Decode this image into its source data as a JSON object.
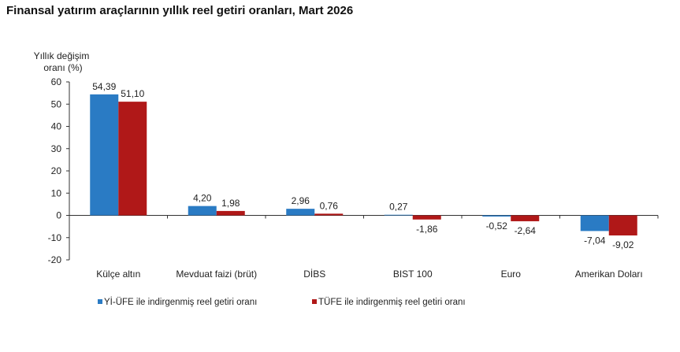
{
  "chart_data": {
    "type": "bar",
    "title": "Finansal yatırım araçlarının yıllık reel getiri oranları, Mart 2026",
    "ylabel": [
      "Yıllık değişim",
      "oranı (%)"
    ],
    "xlabel": "",
    "ylim": [
      -20,
      60
    ],
    "yticks": [
      60,
      50,
      40,
      30,
      20,
      10,
      0,
      -10,
      -20
    ],
    "grid": false,
    "legend_position": "bottom",
    "categories": [
      "Külçe altın",
      "Mevduat faizi (brüt)",
      "DİBS",
      "BIST 100",
      "Euro",
      "Amerikan Doları"
    ],
    "series": [
      {
        "name": "Yİ-ÜFE ile indirgenmiş reel getiri oranı",
        "color": "#2a7bc4",
        "values": [
          54.39,
          4.2,
          2.96,
          0.27,
          -0.52,
          -7.04
        ],
        "labels": [
          "54,39",
          "4,20",
          "2,96",
          "0,27",
          "-0,52",
          "-7,04"
        ]
      },
      {
        "name": "TÜFE ile indirgenmiş reel getiri oranı",
        "color": "#b01818",
        "values": [
          51.1,
          1.98,
          0.76,
          -1.86,
          -2.64,
          -9.02
        ],
        "labels": [
          "51,10",
          "1,98",
          "0,76",
          "-1,86",
          "-2,64",
          "-9,02"
        ]
      }
    ]
  }
}
